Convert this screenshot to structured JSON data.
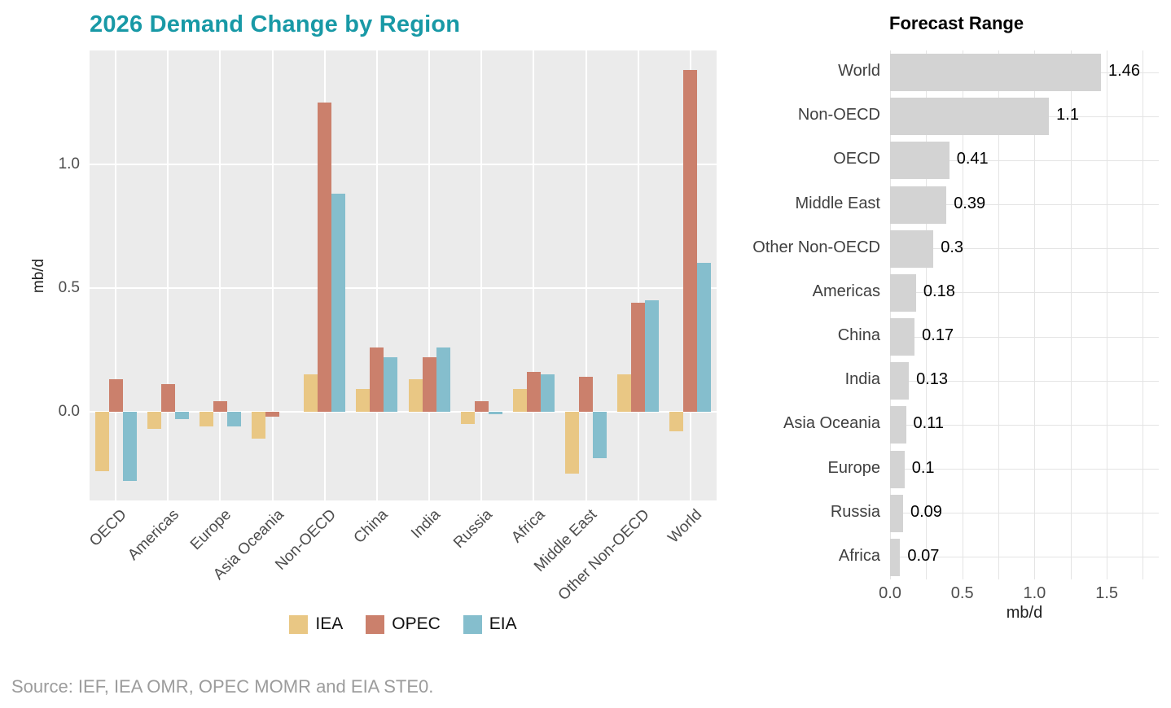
{
  "source_note": "Source: IEF, IEA OMR, OPEC MOMR and EIA STE0.",
  "chart_data": [
    {
      "type": "bar",
      "orientation": "vertical",
      "title": "2026 Demand Change by Region",
      "title_color": "#1899A6",
      "ylabel": "mb/d",
      "panel_bg": "#EBEBEB",
      "grid_color": "#FFFFFF",
      "axis_text_color": "#4D4D4D",
      "ylim": [
        -0.36,
        1.46
      ],
      "yticks": {
        "labels": [
          "0.0",
          "0.5",
          "1.0"
        ],
        "values": [
          0,
          0.5,
          1
        ]
      },
      "legend_position": "bottom",
      "categories": [
        "OECD",
        "Americas",
        "Europe",
        "Asia Oceania",
        "Non-OECD",
        "China",
        "India",
        "Russia",
        "Africa",
        "Middle East",
        "Other Non-OECD",
        "World"
      ],
      "series": [
        {
          "name": "IEA",
          "color": "#E9C784",
          "values": [
            -0.24,
            -0.07,
            -0.06,
            -0.11,
            0.15,
            0.09,
            0.13,
            -0.05,
            0.09,
            -0.25,
            0.15,
            -0.08
          ]
        },
        {
          "name": "OPEC",
          "color": "#CB806C",
          "values": [
            0.13,
            0.11,
            0.04,
            -0.02,
            1.25,
            0.26,
            0.22,
            0.04,
            0.16,
            0.14,
            0.44,
            1.38
          ]
        },
        {
          "name": "EIA",
          "color": "#85BECD",
          "values": [
            -0.28,
            -0.03,
            -0.06,
            0,
            0.88,
            0.22,
            0.26,
            -0.01,
            0.15,
            -0.19,
            0.45,
            0.6
          ]
        }
      ]
    },
    {
      "type": "bar",
      "orientation": "horizontal",
      "title": "Forecast Range",
      "xlabel": "mb/d",
      "bar_color": "#D3D3D3",
      "grid_color": "#E4E4E4",
      "label_color": "#404040",
      "value_color": "#000000",
      "xlim": [
        0,
        1.86
      ],
      "xticks": {
        "labels": [
          "0.0",
          "0.5",
          "1.0",
          "1.5"
        ],
        "values": [
          0,
          0.5,
          1,
          1.5
        ]
      },
      "categories": [
        "World",
        "Non-OECD",
        "OECD",
        "Middle East",
        "Other Non-OECD",
        "Americas",
        "China",
        "India",
        "Asia Oceania",
        "Europe",
        "Russia",
        "Africa"
      ],
      "values": [
        1.46,
        1.1,
        0.41,
        0.39,
        0.3,
        0.18,
        0.17,
        0.13,
        0.11,
        0.1,
        0.09,
        0.07
      ],
      "value_labels": [
        "1.46",
        "1.1",
        "0.41",
        "0.39",
        "0.3",
        "0.18",
        "0.17",
        "0.13",
        "0.11",
        "0.1",
        "0.09",
        "0.07"
      ]
    }
  ]
}
